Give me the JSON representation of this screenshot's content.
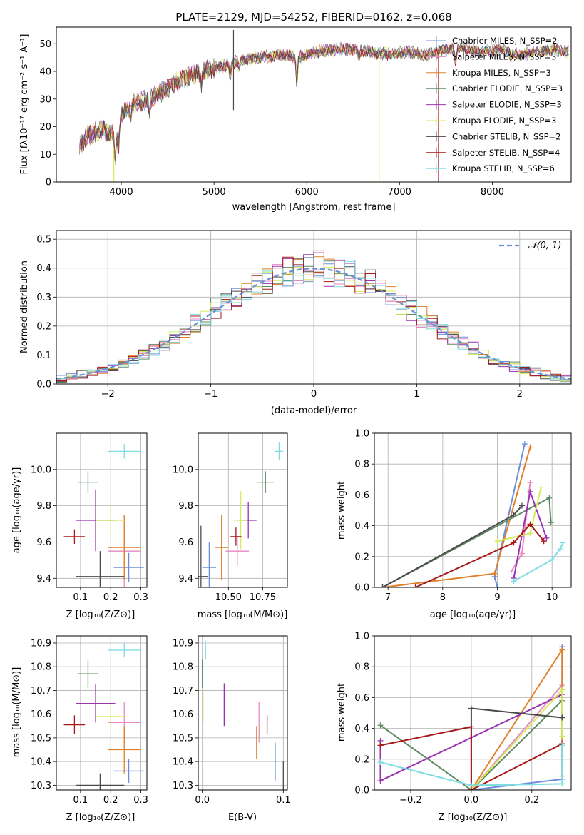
{
  "colors": {
    "c1": "#6a8fd8",
    "c2": "#e58ac4",
    "c3": "#e0802a",
    "c4": "#5e8a62",
    "c5": "#9b32b0",
    "c6": "#d4ec5c",
    "c7": "#4a4a4a",
    "c8": "#a81818",
    "c9": "#7edde2",
    "dashed": "#6a8fd8",
    "grid": "#b0b0b0"
  },
  "chart_data": [
    {
      "id": "spectrum",
      "type": "line",
      "title": "PLATE=2129, MJD=54252, FIBERID=0162, z=0.068",
      "xlabel": "wavelength [Angstrom, rest frame]",
      "ylabel": "Flux [fλ10⁻¹⁷ erg cm⁻² s⁻¹ A⁻¹]",
      "xlim": [
        3300,
        8850
      ],
      "ylim": [
        0,
        56
      ],
      "xticks": [
        4000,
        5000,
        6000,
        7000,
        8000
      ],
      "yticks": [
        0,
        10,
        20,
        30,
        40,
        50
      ],
      "grid": false,
      "legend_position": "top-right",
      "legend": [
        "Chabrier MILES, N_SSP=2",
        "Salpeter MILES, N_SSP=3",
        "Kroupa MILES, N_SSP=3",
        "Chabrier ELODIE, N_SSP=3",
        "Salpeter ELODIE, N_SSP=3",
        "Kroupa ELODIE, N_SSP=3",
        "Chabrier STELIB, N_SSP=2",
        "Salpeter STELIB, N_SSP=4",
        "Kroupa STELIB, N_SSP=6"
      ],
      "continuum": {
        "x": [
          3550,
          3650,
          3800,
          3950,
          4000,
          4100,
          4300,
          4500,
          4700,
          4900,
          5100,
          5300,
          5500,
          5700,
          5900,
          6100,
          6300,
          6500,
          6700,
          6900,
          7100,
          7300,
          7500,
          7700,
          7900,
          8100,
          8300,
          8500,
          8650,
          8800
        ],
        "y": [
          13,
          17,
          19,
          16,
          24,
          28,
          30,
          34,
          38,
          40,
          42,
          44,
          45,
          46,
          45,
          47,
          48,
          48,
          47,
          46,
          47,
          46,
          48,
          48,
          47,
          48,
          46,
          47,
          48,
          47
        ]
      },
      "spikes": [
        {
          "x": 5210,
          "top": 55,
          "bottom": 26
        },
        {
          "x": 3920,
          "top": 12,
          "bottom": 0
        },
        {
          "x": 6780,
          "top": 46,
          "bottom": 0
        },
        {
          "x": 7420,
          "top": 47,
          "bottom": 0
        }
      ]
    },
    {
      "id": "residuals",
      "type": "histogram",
      "xlabel": "(data-model)/error",
      "ylabel": "Normed distribution",
      "xlim": [
        -2.5,
        2.5
      ],
      "ylim": [
        0,
        0.53
      ],
      "xticks": [
        -2,
        -1,
        0,
        1,
        2
      ],
      "yticks": [
        0.0,
        0.1,
        0.2,
        0.3,
        0.4,
        0.5
      ],
      "grid": true,
      "legend_position": "top-right",
      "legend": [
        "𝒩(0, 1)"
      ],
      "bin_width": 0.1
    },
    {
      "id": "age_vs_Z",
      "type": "scatter",
      "xlabel": "Z [log₁₀(Z/Z⊙)]",
      "ylabel": "age  [log₁₀(age/yr)]",
      "xlim": [
        0.02,
        0.32
      ],
      "ylim": [
        9.35,
        10.2
      ],
      "xticks": [
        0.1,
        0.2,
        0.3
      ],
      "yticks": [
        9.4,
        9.6,
        9.8,
        10.0
      ],
      "grid": true,
      "points": [
        {
          "c": "c1",
          "x": 0.26,
          "xe": 0.05,
          "y": 9.46,
          "ye": 0.08
        },
        {
          "c": "c2",
          "x": 0.245,
          "xe": 0.055,
          "y": 9.55,
          "ye": 0.2
        },
        {
          "c": "c3",
          "x": 0.245,
          "xe": 0.055,
          "y": 9.57,
          "ye": 0.18
        },
        {
          "c": "c4",
          "x": 0.125,
          "xe": 0.035,
          "y": 9.93,
          "ye": 0.06
        },
        {
          "c": "c5",
          "x": 0.15,
          "xe": 0.065,
          "y": 9.72,
          "ye": 0.17
        },
        {
          "c": "c6",
          "x": 0.2,
          "xe": 0.05,
          "y": 9.72,
          "ye": 0.1
        },
        {
          "c": "c7",
          "x": 0.165,
          "xe": 0.08,
          "y": 9.41,
          "ye": 0.14
        },
        {
          "c": "c8",
          "x": 0.08,
          "xe": 0.035,
          "y": 9.63,
          "ye": 0.04
        },
        {
          "c": "c9",
          "x": 0.245,
          "xe": 0.055,
          "y": 10.1,
          "ye": 0.04
        }
      ]
    },
    {
      "id": "age_vs_mass",
      "type": "scatter",
      "xlabel": "mass [log₁₀(M/M⊙)]",
      "ylabel": "",
      "xlim": [
        10.28,
        10.93
      ],
      "ylim": [
        9.35,
        10.2
      ],
      "xticks": [
        10.5,
        10.75
      ],
      "yticks": [
        9.4,
        9.6,
        9.8,
        10.0
      ],
      "grid": true,
      "points": [
        {
          "c": "c1",
          "x": 10.36,
          "xe": 0.05,
          "y": 9.46,
          "ye": 0.14
        },
        {
          "c": "c2",
          "x": 10.565,
          "xe": 0.085,
          "y": 9.55,
          "ye": 0.08
        },
        {
          "c": "c3",
          "x": 10.45,
          "xe": 0.05,
          "y": 9.57,
          "ye": 0.18
        },
        {
          "c": "c4",
          "x": 10.77,
          "xe": 0.06,
          "y": 9.93,
          "ye": 0.06
        },
        {
          "c": "c5",
          "x": 10.645,
          "xe": 0.06,
          "y": 9.72,
          "ye": 0.1
        },
        {
          "c": "c6",
          "x": 10.59,
          "xe": 0.05,
          "y": 9.72,
          "ye": 0.16
        },
        {
          "c": "c7",
          "x": 10.3,
          "xe": 0.05,
          "y": 9.41,
          "ye": 0.28
        },
        {
          "c": "c8",
          "x": 10.555,
          "xe": 0.04,
          "y": 9.63,
          "ye": 0.05
        },
        {
          "c": "c9",
          "x": 10.87,
          "xe": 0.03,
          "y": 10.1,
          "ye": 0.05
        }
      ]
    },
    {
      "id": "weight_vs_age",
      "type": "line",
      "xlabel": "age  [log₁₀(age/yr)]",
      "ylabel": "mass weight",
      "xlim": [
        6.75,
        10.35
      ],
      "ylim": [
        0,
        1
      ],
      "xticks": [
        7,
        8,
        9,
        10
      ],
      "yticks": [
        0.0,
        0.2,
        0.4,
        0.6,
        0.8,
        1.0
      ],
      "grid": true,
      "series": [
        {
          "c": "c1",
          "x": [
            9.0,
            8.95,
            9.5
          ],
          "y": [
            0.0,
            0.07,
            0.93
          ]
        },
        {
          "c": "c2",
          "x": [
            9.25,
            9.45,
            9.6
          ],
          "y": [
            0.1,
            0.22,
            0.68
          ]
        },
        {
          "c": "c3",
          "x": [
            6.9,
            8.95,
            9.6
          ],
          "y": [
            0.0,
            0.09,
            0.91
          ]
        },
        {
          "c": "c4",
          "x": [
            6.9,
            9.95,
            9.98
          ],
          "y": [
            0.0,
            0.58,
            0.42
          ]
        },
        {
          "c": "c5",
          "x": [
            9.3,
            9.6,
            9.9
          ],
          "y": [
            0.06,
            0.62,
            0.32
          ]
        },
        {
          "c": "c6",
          "x": [
            9.0,
            9.6,
            9.8
          ],
          "y": [
            0.3,
            0.35,
            0.65
          ]
        },
        {
          "c": "c7",
          "x": [
            6.9,
            9.3,
            9.45
          ],
          "y": [
            0.0,
            0.47,
            0.53
          ]
        },
        {
          "c": "c8",
          "x": [
            7.5,
            9.3,
            9.6,
            9.85
          ],
          "y": [
            0.0,
            0.29,
            0.41,
            0.3
          ]
        },
        {
          "c": "c9",
          "x": [
            9.3,
            10.0,
            10.15,
            10.2
          ],
          "y": [
            0.04,
            0.18,
            0.25,
            0.29
          ]
        }
      ]
    },
    {
      "id": "mass_vs_Z",
      "type": "scatter",
      "xlabel": "Z [log₁₀(Z/Z⊙)]",
      "ylabel": "mass [log₁₀(M/M⊙)]",
      "xlim": [
        0.02,
        0.32
      ],
      "ylim": [
        10.28,
        10.93
      ],
      "xticks": [
        0.1,
        0.2,
        0.3
      ],
      "yticks": [
        10.3,
        10.4,
        10.5,
        10.6,
        10.7,
        10.8,
        10.9
      ],
      "grid": true,
      "points": [
        {
          "c": "c1",
          "x": 0.26,
          "xe": 0.05,
          "y": 10.36,
          "ye": 0.05
        },
        {
          "c": "c2",
          "x": 0.245,
          "xe": 0.055,
          "y": 10.565,
          "ye": 0.085
        },
        {
          "c": "c3",
          "x": 0.245,
          "xe": 0.055,
          "y": 10.45,
          "ye": 0.1
        },
        {
          "c": "c4",
          "x": 0.125,
          "xe": 0.035,
          "y": 10.77,
          "ye": 0.06
        },
        {
          "c": "c5",
          "x": 0.15,
          "xe": 0.065,
          "y": 10.645,
          "ye": 0.08
        },
        {
          "c": "c6",
          "x": 0.2,
          "xe": 0.05,
          "y": 10.59,
          "ye": 0.05
        },
        {
          "c": "c7",
          "x": 0.165,
          "xe": 0.08,
          "y": 10.3,
          "ye": 0.05
        },
        {
          "c": "c8",
          "x": 0.08,
          "xe": 0.035,
          "y": 10.555,
          "ye": 0.04
        },
        {
          "c": "c9",
          "x": 0.245,
          "xe": 0.055,
          "y": 10.87,
          "ye": 0.03
        }
      ]
    },
    {
      "id": "mass_vs_EBV",
      "type": "scatter",
      "xlabel": "E(B-V)",
      "ylabel": "",
      "xlim": [
        -0.005,
        0.105
      ],
      "ylim": [
        10.28,
        10.93
      ],
      "xticks": [
        0.0,
        0.1
      ],
      "yticks": [
        10.3,
        10.4,
        10.5,
        10.6,
        10.7,
        10.8,
        10.9
      ],
      "grid": true,
      "points": [
        {
          "c": "c1",
          "x": 0.09,
          "y": 10.4,
          "ye": 0.08
        },
        {
          "c": "c2",
          "x": 0.07,
          "y": 10.565,
          "ye": 0.085
        },
        {
          "c": "c3",
          "x": 0.067,
          "y": 10.48,
          "ye": 0.07
        },
        {
          "c": "c4",
          "x": 0.0,
          "y": 10.77,
          "ye": 0.06
        },
        {
          "c": "c5",
          "x": 0.027,
          "y": 10.64,
          "ye": 0.09
        },
        {
          "c": "c6",
          "x": 0.001,
          "y": 10.63,
          "ye": 0.06
        },
        {
          "c": "c7",
          "x": 0.1,
          "y": 10.33,
          "ye": 0.07
        },
        {
          "c": "c8",
          "x": 0.08,
          "y": 10.555,
          "ye": 0.04
        },
        {
          "c": "c9",
          "x": 0.004,
          "y": 10.87,
          "ye": 0.04
        }
      ]
    },
    {
      "id": "weight_vs_Z",
      "type": "line",
      "xlabel": "Z [log₁₀(Z/Z⊙)]",
      "ylabel": "mass weight",
      "xlim": [
        -0.32,
        0.33
      ],
      "ylim": [
        0,
        1
      ],
      "xticks": [
        -0.2,
        0.0,
        0.2
      ],
      "yticks": [
        0.0,
        0.2,
        0.4,
        0.6,
        0.8,
        1.0
      ],
      "grid": true,
      "series": [
        {
          "c": "c1",
          "x": [
            0.0,
            0.3,
            0.3
          ],
          "y": [
            0.0,
            0.07,
            0.93
          ]
        },
        {
          "c": "c2",
          "x": [
            0.0,
            0.3,
            0.3
          ],
          "y": [
            0.0,
            0.68,
            0.22
          ]
        },
        {
          "c": "c3",
          "x": [
            0.0,
            0.3,
            0.3
          ],
          "y": [
            0.0,
            0.91,
            0.09
          ]
        },
        {
          "c": "c4",
          "x": [
            -0.3,
            0.0,
            0.3
          ],
          "y": [
            0.42,
            0.0,
            0.58
          ]
        },
        {
          "c": "c5",
          "x": [
            -0.3,
            -0.3,
            0.3
          ],
          "y": [
            0.32,
            0.06,
            0.62
          ]
        },
        {
          "c": "c6",
          "x": [
            0.0,
            0.3,
            0.3
          ],
          "y": [
            0.0,
            0.65,
            0.35
          ]
        },
        {
          "c": "c7",
          "x": [
            0.0,
            0.0,
            0.3
          ],
          "y": [
            0.0,
            0.53,
            0.47
          ]
        },
        {
          "c": "c8",
          "x": [
            -0.3,
            0.0,
            0.0,
            0.3
          ],
          "y": [
            0.29,
            0.41,
            0.0,
            0.3
          ]
        },
        {
          "c": "c9",
          "x": [
            -0.3,
            0.0,
            0.3,
            0.3
          ],
          "y": [
            0.18,
            0.03,
            0.04,
            0.29
          ]
        }
      ]
    }
  ]
}
